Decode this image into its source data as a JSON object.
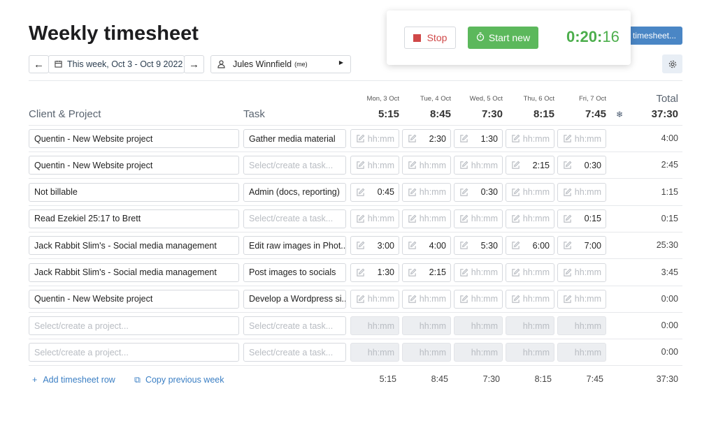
{
  "header": {
    "title": "Weekly timesheet",
    "week": "This week, Oct 3 - Oct 9 2022",
    "user": "Jules Winnfield",
    "user_note": "(me)",
    "submit": "timesheet..."
  },
  "timer": {
    "stop": "Stop",
    "start": "Start new",
    "elapsed": "0:20:",
    "seconds": "16"
  },
  "table": {
    "project_header": "Client & Project",
    "task_header": "Task",
    "total_header": "Total",
    "project_placeholder": "Select/create a project...",
    "task_placeholder": "Select/create a task...",
    "hour_placeholder": "hh:mm",
    "days": [
      {
        "label": "Mon, 3 Oct",
        "total": "5:15"
      },
      {
        "label": "Tue, 4 Oct",
        "total": "8:45"
      },
      {
        "label": "Wed, 5 Oct",
        "total": "7:30"
      },
      {
        "label": "Thu, 6 Oct",
        "total": "8:15"
      },
      {
        "label": "Fri, 7 Oct",
        "total": "7:45"
      }
    ],
    "grand_total": "37:30",
    "rows": [
      {
        "project": "Quentin - New Website project",
        "task": "Gather media material",
        "hours": [
          null,
          "2:30",
          "1:30",
          null,
          null
        ],
        "total": "4:00"
      },
      {
        "project": "Quentin - New Website project",
        "task": null,
        "hours": [
          null,
          null,
          null,
          "2:15",
          "0:30"
        ],
        "total": "2:45"
      },
      {
        "project": "Not billable",
        "task": "Admin (docs, reporting)",
        "hours": [
          "0:45",
          null,
          "0:30",
          null,
          null
        ],
        "total": "1:15"
      },
      {
        "project": "Read Ezekiel 25:17 to Brett",
        "task": null,
        "hours": [
          null,
          null,
          null,
          null,
          "0:15"
        ],
        "total": "0:15"
      },
      {
        "project": "Jack Rabbit Slim's - Social media management",
        "task": "Edit raw images in Phot...",
        "hours": [
          "3:00",
          "4:00",
          "5:30",
          "6:00",
          "7:00"
        ],
        "total": "25:30"
      },
      {
        "project": "Jack Rabbit Slim's - Social media management",
        "task": "Post images to socials",
        "hours": [
          "1:30",
          "2:15",
          null,
          null,
          null
        ],
        "total": "3:45"
      },
      {
        "project": "Quentin - New Website project",
        "task": "Develop a Wordpress si...",
        "hours": [
          null,
          null,
          null,
          null,
          null
        ],
        "total": "0:00"
      },
      {
        "project": null,
        "task": null,
        "hours": [
          null,
          null,
          null,
          null,
          null
        ],
        "total": "0:00"
      },
      {
        "project": null,
        "task": null,
        "hours": [
          null,
          null,
          null,
          null,
          null
        ],
        "total": "0:00"
      }
    ]
  },
  "footer": {
    "add_row": "Add timesheet row",
    "copy_week": "Copy previous week"
  }
}
